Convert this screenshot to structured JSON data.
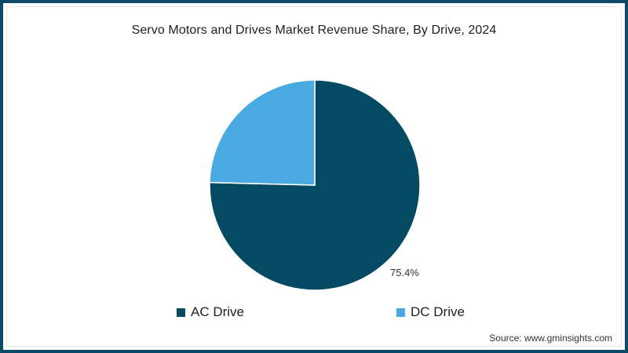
{
  "title": "Servo Motors and Drives Market Revenue Share, By Drive, 2024",
  "source": "Source: www.gminsights.com",
  "colors": {
    "border": "#0b4a66",
    "ac_drive": "#034a62",
    "dc_drive": "#48aae0"
  },
  "legend": [
    {
      "label": "AC Drive",
      "color": "#034a62"
    },
    {
      "label": "DC Drive",
      "color": "#48aae0"
    }
  ],
  "slice_labels": {
    "ac_drive": "75.4%"
  },
  "chart_data": {
    "type": "pie",
    "title": "Servo Motors and Drives Market Revenue Share, By Drive, 2024",
    "categories": [
      "AC Drive",
      "DC Drive"
    ],
    "values": [
      75.4,
      24.6
    ],
    "unit": "%",
    "colors": [
      "#034a62",
      "#48aae0"
    ],
    "data_labels": {
      "AC Drive": "75.4%"
    },
    "legend_position": "bottom",
    "start_angle": "12 o'clock, AC clockwise",
    "source": "Source: www.gminsights.com"
  }
}
